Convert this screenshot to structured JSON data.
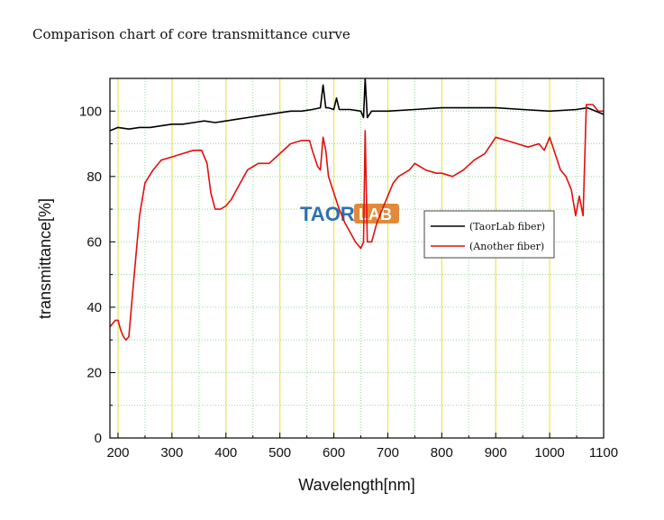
{
  "page_title": "Comparison chart of core transmittance curve",
  "watermark": {
    "text_left": "TAOR",
    "text_right": "LAB",
    "color_left": "#2f6fae",
    "color_right": "#e08a3a"
  },
  "chart_data": {
    "type": "line",
    "title": "",
    "xlabel": "Wavelength[nm]",
    "ylabel": "transmittance[%]",
    "xlim": [
      185,
      1100
    ],
    "ylim": [
      0,
      110
    ],
    "xticks": [
      200,
      300,
      400,
      500,
      600,
      700,
      800,
      900,
      1000,
      1100
    ],
    "yticks": [
      0,
      20,
      40,
      60,
      80,
      100
    ],
    "grid": true,
    "grid_color_major": "#e8e84a",
    "grid_color_minor": "#9ad79a",
    "legend_position": "center-right",
    "series": [
      {
        "name": "(TaorLab fiber)",
        "color": "#000000",
        "points": [
          [
            185,
            94
          ],
          [
            200,
            95
          ],
          [
            220,
            94.5
          ],
          [
            240,
            95
          ],
          [
            260,
            95
          ],
          [
            280,
            95.5
          ],
          [
            300,
            96
          ],
          [
            320,
            96
          ],
          [
            340,
            96.5
          ],
          [
            360,
            97
          ],
          [
            380,
            96.5
          ],
          [
            400,
            97
          ],
          [
            420,
            97.5
          ],
          [
            440,
            98
          ],
          [
            460,
            98.5
          ],
          [
            480,
            99
          ],
          [
            500,
            99.5
          ],
          [
            520,
            100
          ],
          [
            540,
            100
          ],
          [
            560,
            100.5
          ],
          [
            575,
            101
          ],
          [
            580,
            108
          ],
          [
            585,
            101
          ],
          [
            590,
            101
          ],
          [
            600,
            100.5
          ],
          [
            605,
            104
          ],
          [
            610,
            100.5
          ],
          [
            630,
            100.5
          ],
          [
            650,
            100
          ],
          [
            655,
            98
          ],
          [
            658,
            110
          ],
          [
            662,
            98
          ],
          [
            670,
            100
          ],
          [
            700,
            100
          ],
          [
            750,
            100.5
          ],
          [
            800,
            101
          ],
          [
            850,
            101
          ],
          [
            900,
            101
          ],
          [
            950,
            100.5
          ],
          [
            1000,
            100
          ],
          [
            1050,
            100.5
          ],
          [
            1070,
            101
          ],
          [
            1085,
            100
          ],
          [
            1100,
            99
          ]
        ]
      },
      {
        "name": "(Another fiber)",
        "color": "#e01010",
        "points": [
          [
            185,
            34
          ],
          [
            195,
            36
          ],
          [
            200,
            36
          ],
          [
            205,
            33
          ],
          [
            210,
            31
          ],
          [
            215,
            30
          ],
          [
            220,
            31
          ],
          [
            230,
            50
          ],
          [
            240,
            68
          ],
          [
            250,
            78
          ],
          [
            265,
            82
          ],
          [
            280,
            85
          ],
          [
            300,
            86
          ],
          [
            320,
            87
          ],
          [
            340,
            88
          ],
          [
            355,
            88
          ],
          [
            365,
            84
          ],
          [
            372,
            75
          ],
          [
            380,
            70
          ],
          [
            390,
            70
          ],
          [
            400,
            71
          ],
          [
            410,
            73
          ],
          [
            420,
            76
          ],
          [
            440,
            82
          ],
          [
            460,
            84
          ],
          [
            480,
            84
          ],
          [
            500,
            87
          ],
          [
            520,
            90
          ],
          [
            540,
            91
          ],
          [
            555,
            91
          ],
          [
            560,
            88
          ],
          [
            570,
            83
          ],
          [
            575,
            82
          ],
          [
            580,
            92
          ],
          [
            585,
            88
          ],
          [
            590,
            80
          ],
          [
            600,
            75
          ],
          [
            610,
            70
          ],
          [
            620,
            66
          ],
          [
            640,
            60
          ],
          [
            650,
            58
          ],
          [
            655,
            60
          ],
          [
            658,
            94
          ],
          [
            662,
            60
          ],
          [
            670,
            60
          ],
          [
            680,
            66
          ],
          [
            690,
            70
          ],
          [
            700,
            74
          ],
          [
            710,
            78
          ],
          [
            720,
            80
          ],
          [
            740,
            82
          ],
          [
            750,
            84
          ],
          [
            770,
            82
          ],
          [
            790,
            81
          ],
          [
            800,
            81
          ],
          [
            820,
            80
          ],
          [
            840,
            82
          ],
          [
            860,
            85
          ],
          [
            880,
            87
          ],
          [
            900,
            92
          ],
          [
            920,
            91
          ],
          [
            940,
            90
          ],
          [
            960,
            89
          ],
          [
            980,
            90
          ],
          [
            990,
            88
          ],
          [
            1000,
            92
          ],
          [
            1010,
            87
          ],
          [
            1020,
            82
          ],
          [
            1030,
            80
          ],
          [
            1040,
            76
          ],
          [
            1048,
            68
          ],
          [
            1055,
            74
          ],
          [
            1062,
            68
          ],
          [
            1068,
            102
          ],
          [
            1080,
            102
          ],
          [
            1090,
            100
          ],
          [
            1100,
            100
          ]
        ]
      }
    ]
  }
}
